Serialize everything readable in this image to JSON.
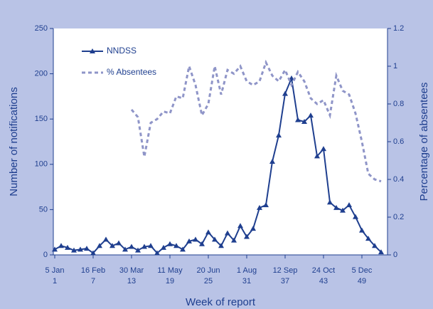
{
  "chart_data": {
    "type": "line",
    "x_label": "Week of report",
    "y_label": "Number of notifications",
    "y2_label": "Percentage of absentees",
    "x": [
      1,
      2,
      3,
      4,
      5,
      6,
      7,
      8,
      9,
      10,
      11,
      12,
      13,
      14,
      15,
      16,
      17,
      18,
      19,
      20,
      21,
      22,
      23,
      24,
      25,
      26,
      27,
      28,
      29,
      30,
      31,
      32,
      33,
      34,
      35,
      36,
      37,
      38,
      39,
      40,
      41,
      42,
      43,
      44,
      45,
      46,
      47,
      48,
      49,
      50,
      51,
      52
    ],
    "xlim": [
      1,
      53
    ],
    "xticks": [
      1,
      7,
      13,
      19,
      25,
      31,
      37,
      43,
      49
    ],
    "xtick_dates": [
      "5 Jan",
      "16 Feb",
      "30 Mar",
      "11 May",
      "20 Jun",
      "1 Aug",
      "12 Sep",
      "24 Oct",
      "5 Dec"
    ],
    "ylim": [
      0,
      250
    ],
    "yticks": [
      0,
      50,
      100,
      150,
      200,
      250
    ],
    "y2lim": [
      0,
      1.2
    ],
    "y2ticks": [
      0,
      0.2,
      0.4,
      0.6,
      0.8,
      1,
      1.2
    ],
    "series": [
      {
        "name": "NNDSS",
        "color": "#1f3f8f",
        "values": [
          6,
          10,
          8,
          5,
          6,
          7,
          2,
          10,
          17,
          10,
          13,
          6,
          9,
          5,
          9,
          10,
          2,
          8,
          12,
          10,
          6,
          15,
          17,
          12,
          25,
          17,
          10,
          24,
          16,
          32,
          20,
          29,
          52,
          55,
          103,
          132,
          178,
          195,
          149,
          147,
          154,
          109,
          117,
          58,
          52,
          49,
          55,
          42,
          27,
          18,
          10,
          3
        ]
      },
      {
        "name": "% Absentees",
        "color": "#8f95c8",
        "axis": "y2",
        "values": [
          null,
          null,
          null,
          null,
          null,
          null,
          null,
          null,
          null,
          null,
          null,
          null,
          0.77,
          0.73,
          0.52,
          0.7,
          0.72,
          0.76,
          0.75,
          0.84,
          0.83,
          1.0,
          0.9,
          0.74,
          0.8,
          1.0,
          0.85,
          0.98,
          0.96,
          1.0,
          0.92,
          0.9,
          0.92,
          1.02,
          0.95,
          0.92,
          0.98,
          0.9,
          0.97,
          0.92,
          0.83,
          0.8,
          0.82,
          0.74,
          0.95,
          0.87,
          0.85,
          0.75,
          0.6,
          0.43,
          0.4,
          0.39
        ]
      }
    ]
  }
}
